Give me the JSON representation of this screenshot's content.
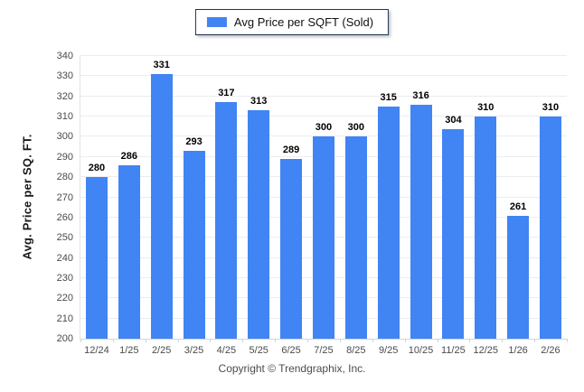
{
  "chart_data": {
    "type": "bar",
    "title": "",
    "legend": "Avg Price per SQFT (Sold)",
    "legend_position": "top",
    "ylabel": "Avg. Price per SQ. FT.",
    "xlabel": "",
    "ylim": [
      200,
      340
    ],
    "yticks": [
      200,
      210,
      220,
      230,
      240,
      250,
      260,
      270,
      280,
      290,
      300,
      310,
      320,
      330,
      340
    ],
    "grid": true,
    "categories": [
      "12/24",
      "1/25",
      "2/25",
      "3/25",
      "4/25",
      "5/25",
      "6/25",
      "7/25",
      "8/25",
      "9/25",
      "10/25",
      "11/25",
      "12/25",
      "1/26",
      "2/26"
    ],
    "values": [
      280,
      286,
      331,
      293,
      317,
      313,
      289,
      300,
      300,
      315,
      316,
      304,
      310,
      261,
      310
    ],
    "bar_color": "#4184F4",
    "grid_color": "#ececf0"
  },
  "footer": {
    "copyright": "Copyright © Trendgraphix, Inc."
  }
}
